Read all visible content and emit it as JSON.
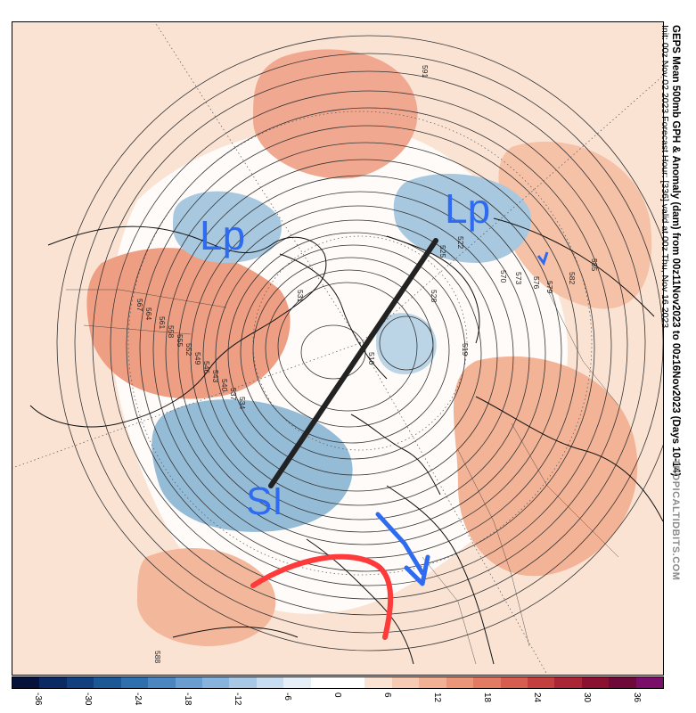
{
  "title": {
    "line1": "GEPS Mean 500mb GPH & Anomaly (dam) from 00z11Nov2023 to 00z16Nov2023 (Days 10-14)",
    "line2": "Init: 00z Nov 02 2023    Forecast Hour: [336]    valid at 00z Thu, Nov 16 2023"
  },
  "credit": "TROPICALTIDBITS.COM",
  "colors": {
    "ocean_background": "#fbe3d4",
    "positive_anomaly": "#f4b79a",
    "strong_positive": "#e9917a",
    "negative_anomaly": "#bcd5e6",
    "strong_negative": "#95bcd7",
    "neutral": "#ffffff",
    "contour": "#333333",
    "annotation_blue": "#2f6bf0",
    "annotation_red": "#ff3a3a",
    "annotation_black": "#222222"
  },
  "annotations": {
    "lp_left": "Lp",
    "lp_right": "Lp",
    "si": "SI"
  },
  "contour_labels": [
    "591",
    "588",
    "585",
    "582",
    "579",
    "576",
    "573",
    "570",
    "567",
    "564",
    "561",
    "558",
    "555",
    "552",
    "549",
    "546",
    "543",
    "540",
    "537",
    "534",
    "531",
    "528",
    "525",
    "522",
    "519",
    "516"
  ],
  "colorbar": {
    "colors": [
      "#06123a",
      "#0b2a63",
      "#12407f",
      "#1c5896",
      "#2f6fad",
      "#4b86c0",
      "#6a9ed0",
      "#88b3dc",
      "#a8c8e6",
      "#c9ddf0",
      "#e6eff8",
      "#ffffff",
      "#ffffff",
      "#fbe3d4",
      "#f7cbb3",
      "#f2b194",
      "#ec9679",
      "#e37b62",
      "#d65e4f",
      "#c4403f",
      "#aa2536",
      "#8a1230",
      "#6e0a3a",
      "#7a0f6a"
    ],
    "ticks": [
      "-36",
      "-30",
      "-24",
      "-18",
      "-12",
      "-6",
      "0",
      "6",
      "12",
      "18",
      "24",
      "30",
      "36"
    ]
  }
}
